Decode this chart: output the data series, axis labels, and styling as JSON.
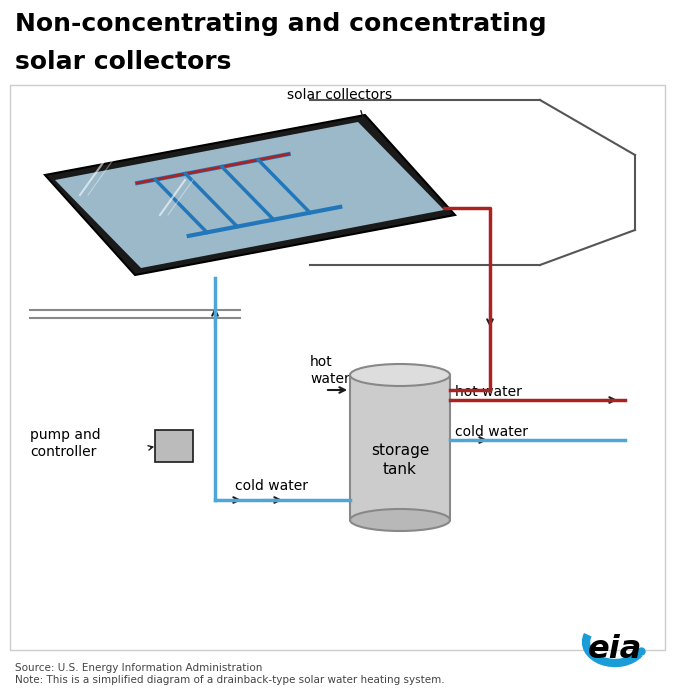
{
  "title_line1": "Non-concentrating and concentrating",
  "title_line2": "solar collectors",
  "title_fontsize": 18,
  "title_fontweight": "bold",
  "bg_color": "#ffffff",
  "blue_color": "#4da6d8",
  "red_color": "#aa2222",
  "dark_color": "#1a1a1a",
  "panel_blue": "#aaccdd",
  "panel_dark": "#1a1a1a",
  "tube_color": "#2277bb",
  "gray_light": "#cccccc",
  "gray_mid": "#aaaaaa",
  "gray_dark": "#888888",
  "source_text": "Source: U.S. Energy Information Administration",
  "note_text": "Note: This is a simplified diagram of a drainback-type solar water heating system.",
  "eia_color": "#1a9cd8",
  "pipe_lw": 2.5,
  "label_fs": 10
}
